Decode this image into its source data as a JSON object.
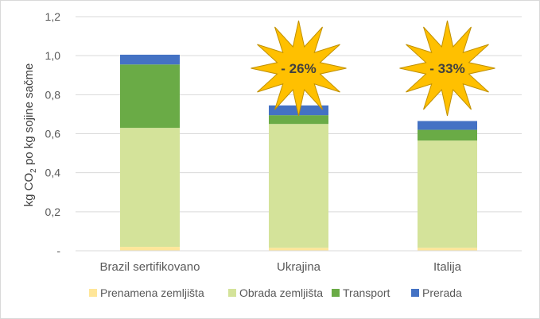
{
  "chart_data": {
    "type": "bar",
    "stacked": true,
    "categories": [
      "Brazil sertifikovano",
      "Ukrajina",
      "Italija"
    ],
    "series": [
      {
        "name": "Prenamena zemljišta",
        "color": "#ffe699",
        "values": [
          0.02,
          0.015,
          0.015
        ]
      },
      {
        "name": "Obrada zemljišta",
        "color": "#d4e39a",
        "values": [
          0.61,
          0.635,
          0.55
        ]
      },
      {
        "name": "Transport",
        "color": "#6aab46",
        "values": [
          0.325,
          0.045,
          0.055
        ]
      },
      {
        "name": "Prerada",
        "color": "#4472c4",
        "values": [
          0.05,
          0.05,
          0.045
        ]
      }
    ],
    "ylabel_parts": [
      "kg CO",
      "2",
      " po kg sojine sačme"
    ],
    "ylim": [
      0,
      1.2
    ],
    "yticks": [
      {
        "value": 0,
        "label": "-"
      },
      {
        "value": 0.2,
        "label": "0,2"
      },
      {
        "value": 0.4,
        "label": "0,4"
      },
      {
        "value": 0.6,
        "label": "0,6"
      },
      {
        "value": 0.8,
        "label": "0,8"
      },
      {
        "value": 1.0,
        "label": "1,0"
      },
      {
        "value": 1.2,
        "label": "1,2"
      }
    ],
    "grid": true,
    "legend_position": "bottom",
    "annotations": [
      {
        "category": "Ukrajina",
        "text": "- 26%"
      },
      {
        "category": "Italija",
        "text": "- 33%"
      }
    ],
    "annotation_fill": "#ffc000",
    "annotation_stroke": "#c09000"
  }
}
